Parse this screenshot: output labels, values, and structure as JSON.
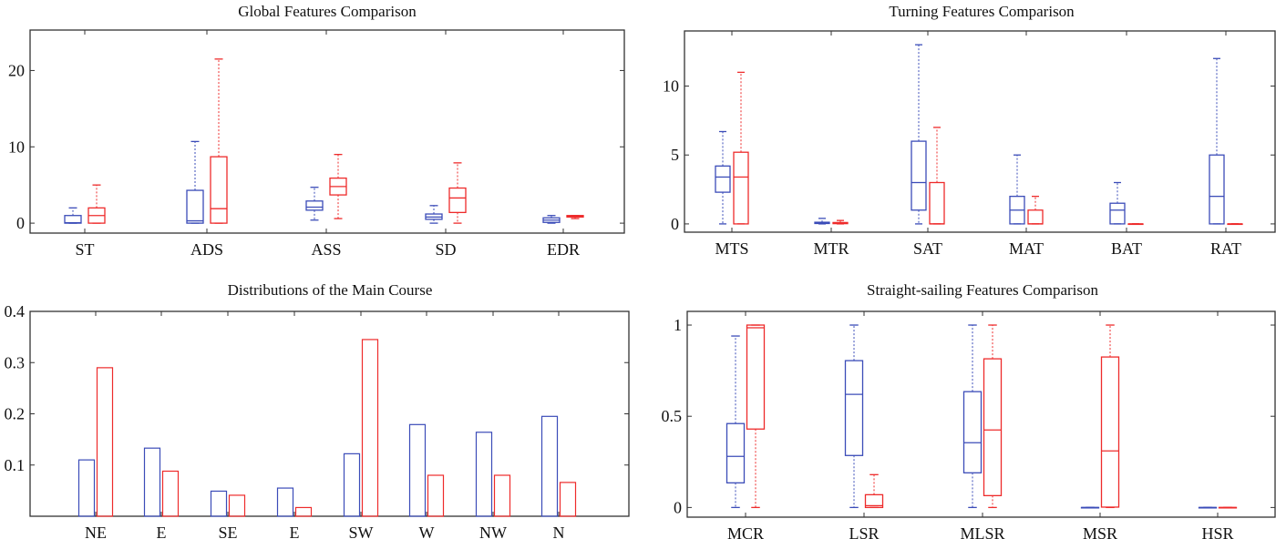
{
  "colors": {
    "series1": "#3b4cb8",
    "series2": "#ee2b2b",
    "axis": "#333333"
  },
  "chart_data": [
    {
      "type": "boxplot",
      "title": "Global Features Comparison",
      "categories": [
        "ST",
        "ADS",
        "ASS",
        "SD",
        "EDR"
      ],
      "ylim": [
        -1.3,
        25.3
      ],
      "yticks": [
        0,
        10,
        20
      ],
      "series": [
        {
          "color": "#3b4cb8",
          "boxes": [
            {
              "min": 0,
              "q1": 0,
              "median": 0.05,
              "q3": 1,
              "max": 2
            },
            {
              "min": 0,
              "q1": 0,
              "median": 0.3,
              "q3": 4.3,
              "max": 10.7
            },
            {
              "min": 0.4,
              "q1": 1.7,
              "median": 2.1,
              "q3": 2.9,
              "max": 4.7
            },
            {
              "min": 0,
              "q1": 0.5,
              "median": 0.8,
              "q3": 1.2,
              "max": 2.3
            },
            {
              "min": 0,
              "q1": 0.1,
              "median": 0.4,
              "q3": 0.7,
              "max": 1.0
            }
          ]
        },
        {
          "color": "#ee2b2b",
          "boxes": [
            {
              "min": 0,
              "q1": 0,
              "median": 1,
              "q3": 2,
              "max": 5
            },
            {
              "min": 0,
              "q1": 0,
              "median": 1.9,
              "q3": 8.7,
              "max": 21.5
            },
            {
              "min": 0.6,
              "q1": 3.7,
              "median": 4.8,
              "q3": 5.9,
              "max": 9.0
            },
            {
              "min": 0,
              "q1": 1.4,
              "median": 3.3,
              "q3": 4.6,
              "max": 7.9
            },
            {
              "min": 0.6,
              "q1": 0.8,
              "median": 0.9,
              "q3": 1.0,
              "max": 1.0
            }
          ]
        }
      ]
    },
    {
      "type": "boxplot",
      "title": "Turning Features Comparison",
      "categories": [
        "MTS",
        "MTR",
        "SAT",
        "MAT",
        "BAT",
        "RAT"
      ],
      "ylim": [
        -0.6,
        14
      ],
      "yticks": [
        0,
        5,
        10
      ],
      "series": [
        {
          "color": "#3b4cb8",
          "boxes": [
            {
              "min": 0,
              "q1": 2.3,
              "median": 3.4,
              "q3": 4.2,
              "max": 6.7
            },
            {
              "min": 0,
              "q1": 0.03,
              "median": 0.08,
              "q3": 0.12,
              "max": 0.4
            },
            {
              "min": 0,
              "q1": 1,
              "median": 3,
              "q3": 6,
              "max": 13
            },
            {
              "min": 0,
              "q1": 0,
              "median": 1,
              "q3": 2,
              "max": 5
            },
            {
              "min": 0,
              "q1": 0,
              "median": 1,
              "q3": 1.5,
              "max": 3
            },
            {
              "min": 0,
              "q1": 0,
              "median": 2,
              "q3": 5,
              "max": 12
            }
          ]
        },
        {
          "color": "#ee2b2b",
          "boxes": [
            {
              "min": 0,
              "q1": 0,
              "median": 3.4,
              "q3": 5.2,
              "max": 11
            },
            {
              "min": 0,
              "q1": 0.02,
              "median": 0.05,
              "q3": 0.1,
              "max": 0.25
            },
            {
              "min": 0,
              "q1": 0,
              "median": 0,
              "q3": 3,
              "max": 7
            },
            {
              "min": 0,
              "q1": 0,
              "median": 0,
              "q3": 1,
              "max": 2
            },
            {
              "min": 0,
              "q1": 0,
              "median": 0,
              "q3": 0,
              "max": 0
            },
            {
              "min": 0,
              "q1": 0,
              "median": 0,
              "q3": 0,
              "max": 0
            }
          ]
        }
      ]
    },
    {
      "type": "bar",
      "title": "Distributions of the Main Course",
      "categories": [
        "NE",
        "E",
        "SE",
        "E",
        "SW",
        "W",
        "NW",
        "N"
      ],
      "ylim": [
        0,
        0.4
      ],
      "yticks": [
        0.1,
        0.2,
        0.3,
        0.4
      ],
      "series": [
        {
          "color": "#3b4cb8",
          "values": [
            0.11,
            0.133,
            0.049,
            0.055,
            0.122,
            0.179,
            0.164,
            0.195
          ]
        },
        {
          "color": "#ee2b2b",
          "values": [
            0.29,
            0.088,
            0.041,
            0.017,
            0.345,
            0.08,
            0.08,
            0.066
          ]
        }
      ]
    },
    {
      "type": "boxplot",
      "title": "Straight-sailing Features Comparison",
      "categories": [
        "MCR",
        "LSR",
        "MLSR",
        "MSR",
        "HSR"
      ],
      "ylim": [
        -0.053,
        1.075
      ],
      "yticks": [
        0,
        0.5,
        1
      ],
      "series": [
        {
          "color": "#3b4cb8",
          "boxes": [
            {
              "min": 0,
              "q1": 0.135,
              "median": 0.28,
              "q3": 0.46,
              "max": 0.94
            },
            {
              "min": 0,
              "q1": 0.285,
              "median": 0.62,
              "q3": 0.805,
              "max": 1
            },
            {
              "min": 0,
              "q1": 0.19,
              "median": 0.355,
              "q3": 0.635,
              "max": 1
            },
            {
              "min": 0,
              "q1": 0,
              "median": 0,
              "q3": 0,
              "max": 0
            },
            {
              "min": 0,
              "q1": 0,
              "median": 0,
              "q3": 0,
              "max": 0
            }
          ]
        },
        {
          "color": "#ee2b2b",
          "boxes": [
            {
              "min": 0,
              "q1": 0.43,
              "median": 0.985,
              "q3": 1,
              "max": 1
            },
            {
              "min": 0,
              "q1": 0,
              "median": 0.01,
              "q3": 0.07,
              "max": 0.18
            },
            {
              "min": 0,
              "q1": 0.065,
              "median": 0.425,
              "q3": 0.815,
              "max": 1
            },
            {
              "min": 0,
              "q1": 0.002,
              "median": 0.31,
              "q3": 0.825,
              "max": 1
            },
            {
              "min": 0,
              "q1": 0,
              "median": 0,
              "q3": 0,
              "max": 0
            }
          ]
        }
      ]
    }
  ]
}
